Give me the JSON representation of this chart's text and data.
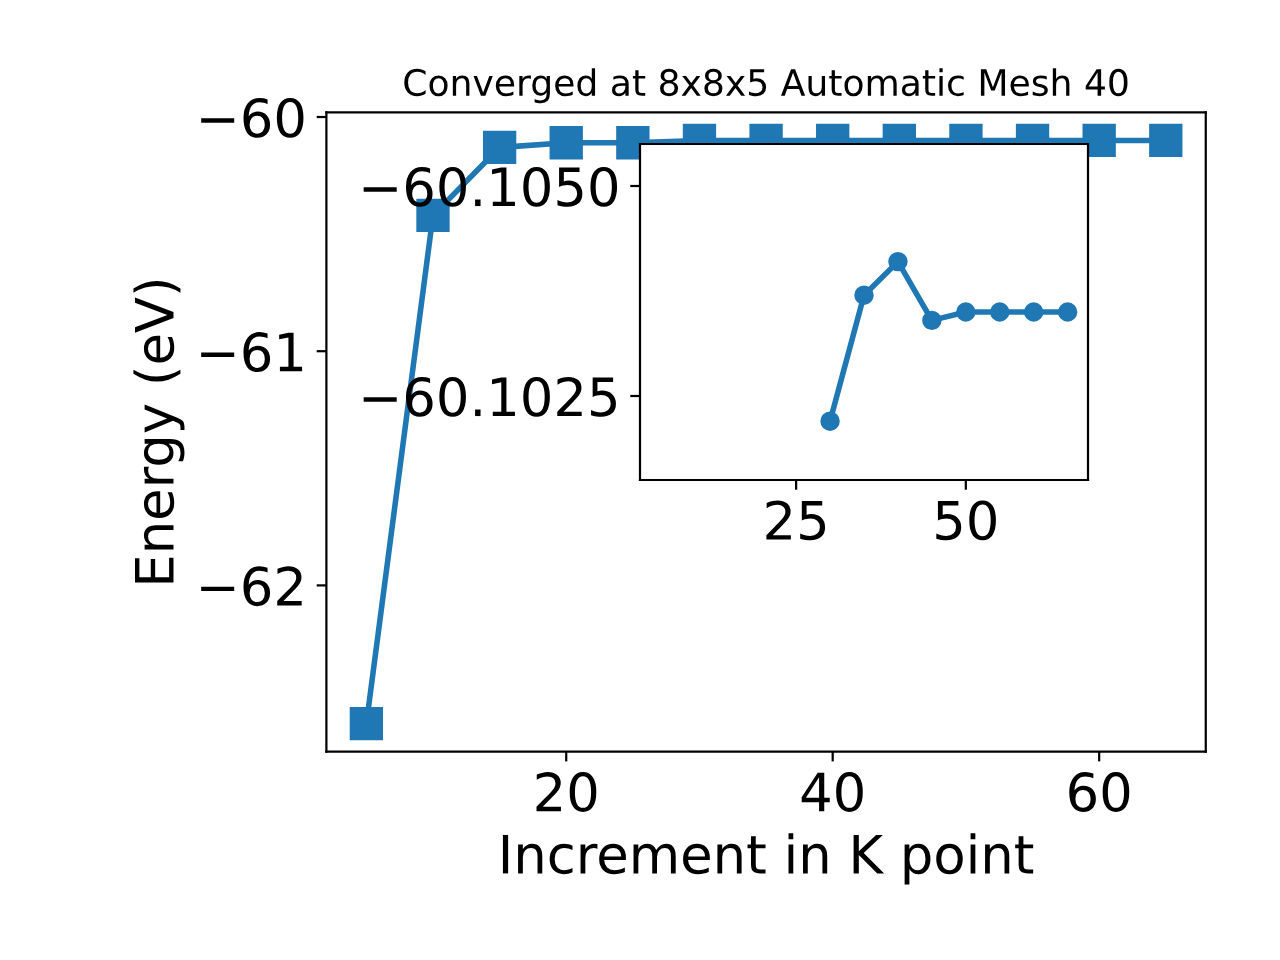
{
  "chart_data": [
    {
      "type": "line",
      "title": "Converged at 8x8x5 Automatic Mesh 40",
      "xlabel": "Increment in K point",
      "ylabel": "Energy (eV)",
      "x": [
        5,
        10,
        15,
        20,
        25,
        30,
        35,
        40,
        45,
        50,
        55,
        60,
        65
      ],
      "series": [
        {
          "color": "#1f77b4",
          "values": [
            -62.59,
            -60.42,
            -60.13,
            -60.11,
            -60.11,
            -60.1,
            -60.1,
            -60.1,
            -60.1,
            -60.1,
            -60.1,
            -60.1,
            -60.1
          ]
        }
      ],
      "xlim": [
        2,
        68
      ],
      "ylim": [
        -62.71,
        -59.98
      ],
      "xticks": [
        20,
        40,
        60
      ],
      "yticks": [
        {
          "value": -60,
          "label": "−60"
        },
        {
          "value": -61,
          "label": "−61"
        },
        {
          "value": -62,
          "label": "−62"
        }
      ],
      "marker": "square",
      "line_style": "solid",
      "grid": false,
      "legend": false
    },
    {
      "type": "line",
      "x": [
        30,
        35,
        40,
        45,
        50,
        55,
        60,
        65
      ],
      "series": [
        {
          "color": "#1f77b4",
          "values": [
            -60.1022,
            -60.1037,
            -60.1041,
            -60.1034,
            -60.1035,
            -60.1035,
            -60.1035,
            -60.1035
          ]
        }
      ],
      "xlim": [
        2,
        68
      ],
      "ylim": [
        -60.1015,
        -60.1055
      ],
      "xticks": [
        25,
        50
      ],
      "yticks": [
        {
          "value": -60.105,
          "label": "−60.1050"
        },
        {
          "value": -60.1025,
          "label": "−60.1025"
        }
      ],
      "marker": "circle",
      "line_style": "solid",
      "grid": false,
      "legend": false
    }
  ]
}
